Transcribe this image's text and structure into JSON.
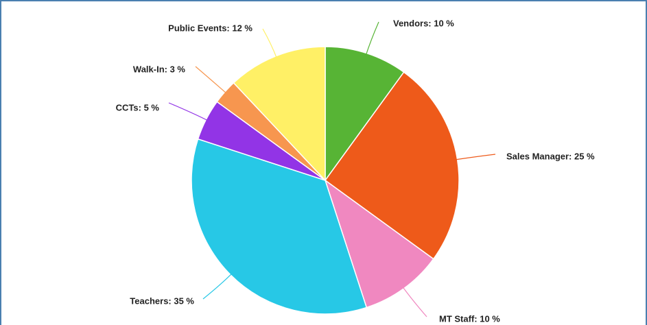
{
  "chart_data": {
    "type": "pie",
    "values": [
      10,
      25,
      10,
      35,
      5,
      3,
      12
    ],
    "value_labels": [
      "Vendors: 10 %",
      "Sales Manager: 25 %",
      "MT Staff: 10 %",
      "Teachers: 35 %",
      "CCTs: 5 %",
      "Walk-In: 3 %",
      "Public Events: 12 %"
    ],
    "colors": [
      "#57b435",
      "#ee5a1a",
      "#f088c0",
      "#27c8e6",
      "#9234e6",
      "#f7964f",
      "#fff066"
    ]
  }
}
